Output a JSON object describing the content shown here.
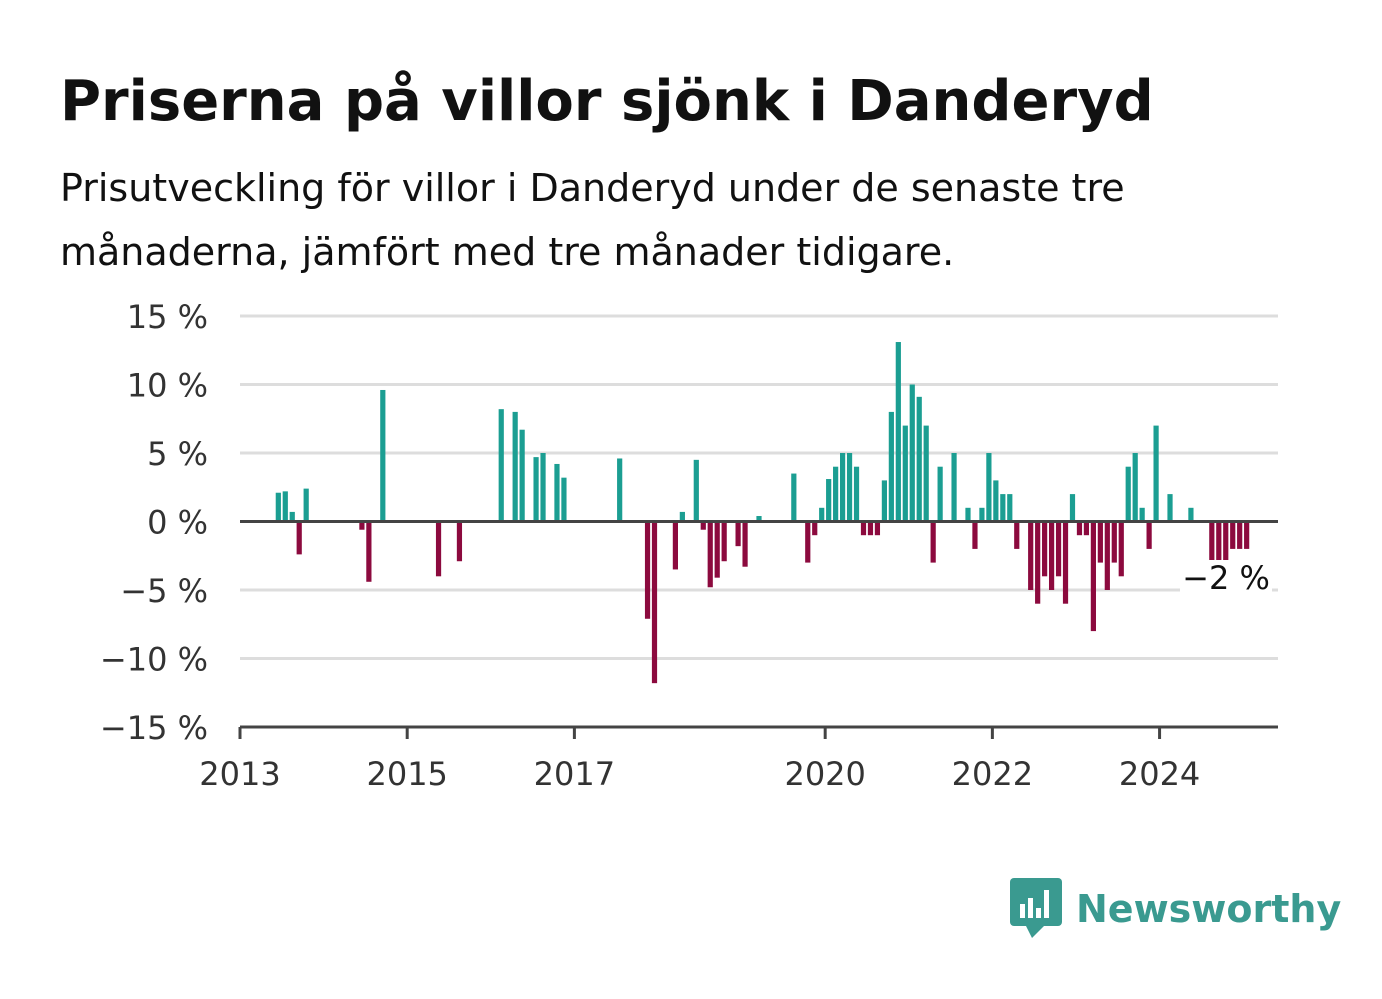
{
  "header": {
    "title": "Priserna på villor sjönk i Danderyd",
    "subtitle": "Prisutveckling för villor i Danderyd under de senaste tre månaderna, jämfört med tre månader tidigare."
  },
  "brand": {
    "name": "Newsworthy",
    "icon": "newsworthy-logo-icon",
    "color": "#3a9a90"
  },
  "colors": {
    "positive": "#1b9e92",
    "negative": "#8c0a3e",
    "zero_line": "#444444",
    "grid": "#dddddd"
  },
  "chart_data": {
    "type": "bar",
    "title": "Priserna på villor sjönk i Danderyd",
    "xlabel": "",
    "ylabel": "",
    "ylim": [
      -15,
      15
    ],
    "y_ticks": [
      15,
      10,
      5,
      0,
      -5,
      -10,
      -15
    ],
    "y_tick_labels": [
      "15 %",
      "10 %",
      "5 %",
      "0 %",
      "−5 %",
      "−10 %",
      "−15 %"
    ],
    "x_ticks": [
      "2013",
      "2015",
      "2017",
      "2020",
      "2022",
      "2024"
    ],
    "x_range": [
      "2013-01",
      "2025-06"
    ],
    "grid": true,
    "annotation": {
      "x": "2024-12",
      "label": "−2 %"
    },
    "x": [
      "2013-06",
      "2013-07",
      "2013-08",
      "2013-09",
      "2013-10",
      "2014-06",
      "2014-07",
      "2014-09",
      "2015-05",
      "2015-08",
      "2016-02",
      "2016-04",
      "2016-05",
      "2016-07",
      "2016-08",
      "2016-10",
      "2016-11",
      "2017-07",
      "2017-11",
      "2017-12",
      "2018-03",
      "2018-04",
      "2018-06",
      "2018-07",
      "2018-08",
      "2018-09",
      "2018-10",
      "2018-12",
      "2019-01",
      "2019-03",
      "2019-08",
      "2019-10",
      "2019-11",
      "2019-12",
      "2020-01",
      "2020-02",
      "2020-03",
      "2020-04",
      "2020-05",
      "2020-06",
      "2020-07",
      "2020-08",
      "2020-09",
      "2020-10",
      "2020-11",
      "2020-12",
      "2021-01",
      "2021-02",
      "2021-03",
      "2021-04",
      "2021-05",
      "2021-07",
      "2021-09",
      "2021-10",
      "2021-11",
      "2021-12",
      "2022-01",
      "2022-02",
      "2022-03",
      "2022-04",
      "2022-06",
      "2022-07",
      "2022-08",
      "2022-09",
      "2022-10",
      "2022-11",
      "2022-12",
      "2023-01",
      "2023-02",
      "2023-03",
      "2023-04",
      "2023-05",
      "2023-06",
      "2023-07",
      "2023-08",
      "2023-09",
      "2023-10",
      "2023-11",
      "2023-12",
      "2024-02",
      "2024-05",
      "2024-08",
      "2024-09",
      "2024-10",
      "2024-11",
      "2024-12",
      "2025-01"
    ],
    "values": [
      2.1,
      2.2,
      0.7,
      -2.4,
      2.4,
      -0.6,
      -4.4,
      9.6,
      -4.0,
      -2.9,
      8.2,
      8.0,
      6.7,
      4.7,
      5.0,
      4.2,
      3.2,
      4.6,
      -7.1,
      -11.8,
      -3.5,
      0.7,
      4.5,
      -0.6,
      -4.8,
      -4.1,
      -2.9,
      -1.8,
      -3.3,
      0.4,
      3.5,
      -3.0,
      -1.0,
      1.0,
      3.1,
      4.0,
      5.0,
      5.0,
      4.0,
      -1.0,
      -1.0,
      -1.0,
      3.0,
      8.0,
      13.1,
      7.0,
      10.0,
      9.1,
      7.0,
      -3.0,
      4.0,
      5.0,
      1.0,
      -2.0,
      1.0,
      5.0,
      3.0,
      2.0,
      2.0,
      -2.0,
      -5.0,
      -6.0,
      -4.0,
      -5.0,
      -4.0,
      -6.0,
      2.0,
      -1.0,
      -1.0,
      -8.0,
      -3.0,
      -5.0,
      -3.0,
      -4.0,
      4.0,
      5.0,
      1.0,
      -2.0,
      7.0,
      2.0,
      1.0,
      -3.0,
      -3.0,
      -3.0,
      -2.0,
      -2.0,
      -2.0
    ]
  }
}
